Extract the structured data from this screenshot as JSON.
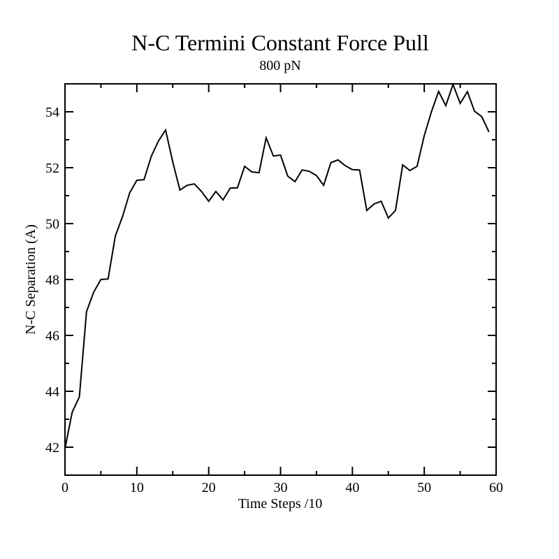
{
  "chart_data": {
    "type": "line",
    "title": "N-C Termini Constant Force Pull",
    "subtitle": "800 pN",
    "xlabel": "Time Steps /10",
    "ylabel": "N-C Separation (A)",
    "xlim": [
      0,
      60
    ],
    "ylim": [
      41,
      55
    ],
    "xticks": [
      0,
      10,
      20,
      30,
      40,
      50,
      60
    ],
    "yticks": [
      42,
      44,
      46,
      48,
      50,
      52,
      54
    ],
    "grid": false,
    "line_color": "#000000",
    "series": [
      {
        "x": [
          0,
          1,
          2,
          3,
          4,
          5,
          6,
          7,
          8,
          9,
          10,
          11,
          12,
          13,
          14,
          15,
          16,
          17,
          18,
          19,
          20,
          21,
          22,
          23,
          24,
          25,
          26,
          27,
          28,
          29,
          30,
          31,
          32,
          33,
          34,
          35,
          36,
          37,
          38,
          39,
          40,
          41,
          42,
          43,
          44,
          45,
          46,
          47,
          48,
          49,
          50,
          51,
          52,
          53,
          54,
          55,
          56,
          57,
          58,
          59
        ],
        "values": [
          41.95,
          43.25,
          43.8,
          46.85,
          47.55,
          48.0,
          48.02,
          49.55,
          50.25,
          51.1,
          51.55,
          51.57,
          52.4,
          52.95,
          53.35,
          52.2,
          51.2,
          51.37,
          51.42,
          51.15,
          50.8,
          51.15,
          50.85,
          51.27,
          51.28,
          52.05,
          51.85,
          51.82,
          53.07,
          52.42,
          52.45,
          51.7,
          51.5,
          51.92,
          51.87,
          51.72,
          51.37,
          52.18,
          52.28,
          52.07,
          51.93,
          51.92,
          50.47,
          50.7,
          50.8,
          50.2,
          50.47,
          52.1,
          51.9,
          52.05,
          53.15,
          54.0,
          54.73,
          54.22,
          54.98,
          54.3,
          54.72,
          54.02,
          53.83,
          53.28
        ]
      }
    ]
  }
}
